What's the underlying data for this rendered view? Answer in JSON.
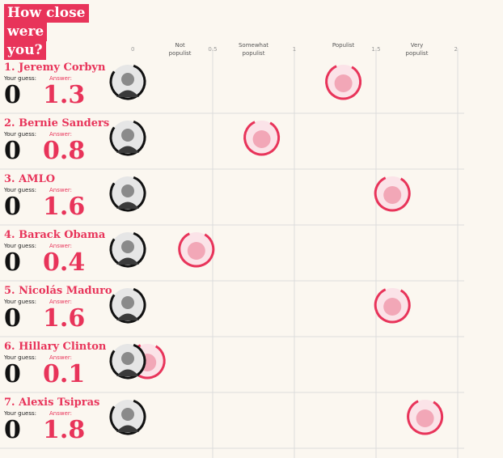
{
  "title_lines": [
    "How close were",
    "you?"
  ],
  "labels": {
    "guess": "Your guess:",
    "answer": "Answer:"
  },
  "chart_data": {
    "type": "scatter",
    "xlim": [
      0,
      2
    ],
    "ticks": [
      "0",
      "0.5",
      "1",
      "1.5",
      "2"
    ],
    "categories": [
      {
        "x": 0.3,
        "lines": [
          "Not",
          "populist"
        ]
      },
      {
        "x": 0.75,
        "lines": [
          "Somewhat",
          "populist"
        ]
      },
      {
        "x": 1.3,
        "lines": [
          "Populist"
        ]
      },
      {
        "x": 1.75,
        "lines": [
          "Very",
          "populist"
        ]
      }
    ],
    "rows": [
      {
        "rank_name": "1. Jeremy Corbyn",
        "guess": 0,
        "guess_label": "0",
        "answer": 1.3,
        "answer_label": "1.3"
      },
      {
        "rank_name": "2. Bernie Sanders",
        "guess": 0,
        "guess_label": "0",
        "answer": 0.8,
        "answer_label": "0.8"
      },
      {
        "rank_name": "3. AMLO",
        "guess": 0,
        "guess_label": "0",
        "answer": 1.6,
        "answer_label": "1.6"
      },
      {
        "rank_name": "4. Barack Obama",
        "guess": 0,
        "guess_label": "0",
        "answer": 0.4,
        "answer_label": "0.4"
      },
      {
        "rank_name": "5. Nicolás Maduro",
        "guess": 0,
        "guess_label": "0",
        "answer": 1.6,
        "answer_label": "1.6"
      },
      {
        "rank_name": "6. Hillary Clinton",
        "guess": 0,
        "guess_label": "0",
        "answer": 0.1,
        "answer_label": "0.1"
      },
      {
        "rank_name": "7. Alexis Tsipras",
        "guess": 0,
        "guess_label": "0",
        "answer": 1.8,
        "answer_label": "1.8"
      }
    ]
  },
  "colors": {
    "accent": "#e8345a",
    "guess_ring": "#111111",
    "grid": "#dcdcdc",
    "background": "#fbf7f0"
  }
}
